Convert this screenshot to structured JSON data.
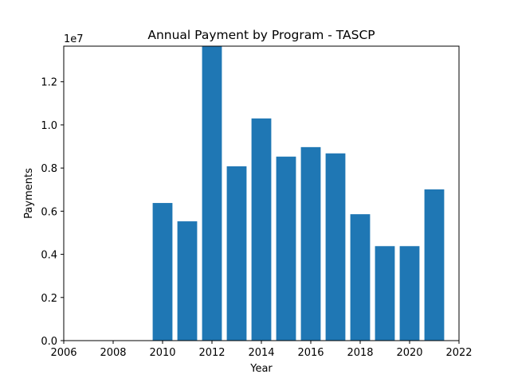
{
  "chart_data": {
    "type": "bar",
    "title": "Annual Payment by Program - TASCP",
    "xlabel": "Year",
    "ylabel": "Payments",
    "y_offset_label": "1e7",
    "y_multiplier": 10000000,
    "xlim": [
      2006,
      2022
    ],
    "ylim": [
      0,
      13650000
    ],
    "x_ticks": [
      2006,
      2008,
      2010,
      2012,
      2014,
      2016,
      2018,
      2020,
      2022
    ],
    "y_ticks": [
      0,
      2000000,
      4000000,
      6000000,
      8000000,
      10000000,
      12000000
    ],
    "y_tick_labels": [
      "0.0",
      "0.2",
      "0.4",
      "0.6",
      "0.8",
      "1.0",
      "1.2"
    ],
    "bar_color": "#1f77b4",
    "grid": false,
    "legend": "none",
    "bars": [
      {
        "x": 2010,
        "value": 6380000
      },
      {
        "x": 2011,
        "value": 5530000
      },
      {
        "x": 2012,
        "value": 13650000
      },
      {
        "x": 2013,
        "value": 8080000
      },
      {
        "x": 2014,
        "value": 10300000
      },
      {
        "x": 2015,
        "value": 8530000
      },
      {
        "x": 2016,
        "value": 8970000
      },
      {
        "x": 2017,
        "value": 8680000
      },
      {
        "x": 2018,
        "value": 5860000
      },
      {
        "x": 2019,
        "value": 4380000
      },
      {
        "x": 2020,
        "value": 4380000
      },
      {
        "x": 2021,
        "value": 7010000
      }
    ]
  }
}
